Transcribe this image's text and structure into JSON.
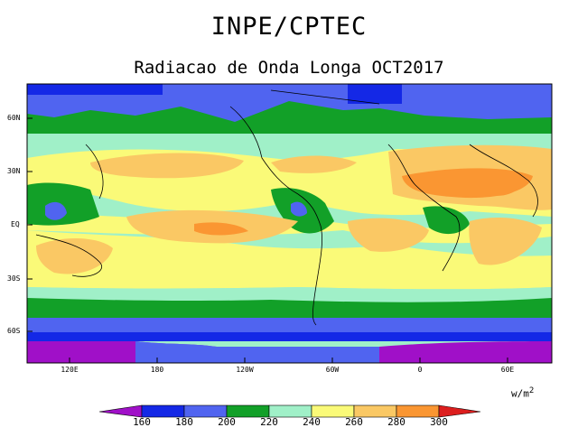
{
  "header": {
    "title": "INPE/CPTEC",
    "subtitle": "Radiacao de Onda Longa OCT2017"
  },
  "axes": {
    "lat_ticks": [
      "60N",
      "30N",
      "EQ",
      "30S",
      "60S"
    ],
    "lon_ticks": [
      "120E",
      "180",
      "120W",
      "60W",
      "0",
      "60E"
    ]
  },
  "colorbar": {
    "unit_text": "w/m",
    "unit_power": "2",
    "levels": [
      "160",
      "180",
      "200",
      "220",
      "240",
      "260",
      "280",
      "300"
    ],
    "colors": [
      "#a010c8",
      "#1428e6",
      "#5064f0",
      "#12a028",
      "#a0f0c8",
      "#fafa78",
      "#fac864",
      "#fa9632",
      "#dc1e1e"
    ]
  },
  "chart_data": {
    "type": "heatmap",
    "variable": "Outgoing Longwave Radiation",
    "units": "W/m^2",
    "period": "OCT2017",
    "x_range_deg_lon": [
      80,
      90
    ],
    "y_range_deg_lat": [
      -80,
      80
    ]
  }
}
